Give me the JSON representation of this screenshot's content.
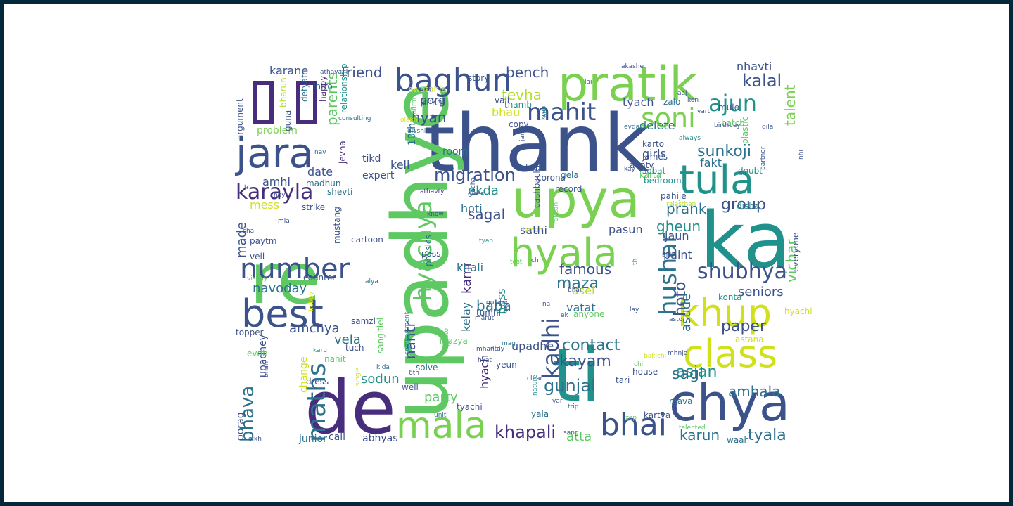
{
  "colors": {
    "frame": "#04273a",
    "background": "#ffffff"
  },
  "words": [
    {
      "t": "thank",
      "c": "#3b528b"
    },
    {
      "t": "upadhye",
      "c": "#5ec962"
    },
    {
      "t": "ka",
      "c": "#21918c"
    },
    {
      "t": "ti",
      "c": "#21918c"
    },
    {
      "t": "de",
      "c": "#472d7b"
    },
    {
      "t": "re",
      "c": "#5ec962"
    },
    {
      "t": "upya",
      "c": "#7ad151"
    },
    {
      "t": "pratik",
      "c": "#7ad151"
    },
    {
      "t": "chya",
      "c": "#3b528b"
    },
    {
      "t": "mala",
      "c": "#7ad151"
    },
    {
      "t": "class",
      "c": "#d0e11c"
    },
    {
      "t": "khup",
      "c": "#d0e11c"
    },
    {
      "t": "best",
      "c": "#3b528b"
    },
    {
      "t": "hyala",
      "c": "#7ad151"
    },
    {
      "t": "tula",
      "c": "#21918c"
    },
    {
      "t": "jara",
      "c": "#3b528b"
    },
    {
      "t": "baghun",
      "c": "#3b528b"
    },
    {
      "t": "number",
      "c": "#3b528b"
    },
    {
      "t": "bhai",
      "c": "#3b528b"
    },
    {
      "t": "soni",
      "c": "#7ad151"
    },
    {
      "t": "maths",
      "c": "#2c728e"
    },
    {
      "t": "hyachya",
      "c": "#5ec962"
    },
    {
      "t": "shubhya",
      "c": "#3b528b"
    },
    {
      "t": "karayla",
      "c": "#472d7b"
    },
    {
      "t": "mahit",
      "c": "#3b528b"
    },
    {
      "t": "ajun",
      "c": "#21918c"
    },
    {
      "t": "kadhi",
      "c": "#3b528b"
    },
    {
      "t": "hushar",
      "c": "#2c728e"
    },
    {
      "t": "bhava",
      "c": "#2c728e"
    },
    {
      "t": "migration",
      "c": "#3b528b"
    },
    {
      "t": "kalal",
      "c": "#3b528b"
    },
    {
      "t": "gunjal",
      "c": "#2c728e"
    },
    {
      "t": "khapali",
      "c": "#472d7b"
    },
    {
      "t": "contact",
      "c": "#2c728e"
    },
    {
      "t": "sunkoji",
      "c": "#2c728e"
    },
    {
      "t": "group",
      "c": "#3b528b"
    },
    {
      "t": "famous",
      "c": "#3b528b"
    },
    {
      "t": "kayam",
      "c": "#3b528b"
    },
    {
      "t": "tyala",
      "c": "#2c728e"
    },
    {
      "t": "amhala",
      "c": "#2c728e"
    },
    {
      "t": "asian",
      "c": "#21918c"
    },
    {
      "t": "sagl",
      "c": "#2c728e"
    },
    {
      "t": "maza",
      "c": "#2c728e"
    },
    {
      "t": "paper",
      "c": "#3b528b"
    },
    {
      "t": "seniors",
      "c": "#3b528b"
    },
    {
      "t": "nantr",
      "c": "#3b528b"
    },
    {
      "t": "baba",
      "c": "#2c728e"
    },
    {
      "t": "hoto",
      "c": "#3b528b"
    },
    {
      "t": "karun",
      "c": "#2c728e"
    },
    {
      "t": "bench",
      "c": "#3b528b"
    },
    {
      "t": "parents",
      "c": "#5ec962"
    },
    {
      "t": "talent",
      "c": "#7ad151"
    },
    {
      "t": "tevha",
      "c": "#b5de2b"
    },
    {
      "t": "hyan",
      "c": "#3b528b"
    },
    {
      "t": "sagal",
      "c": "#3b528b"
    },
    {
      "t": "prank",
      "c": "#2c728e"
    },
    {
      "t": "gheun",
      "c": "#21918c"
    },
    {
      "t": "vichar",
      "c": "#5ec962"
    },
    {
      "t": "amchya",
      "c": "#3b528b"
    },
    {
      "t": "party",
      "c": "#5ec962"
    },
    {
      "t": "atta",
      "c": "#5ec962"
    },
    {
      "t": "sodun",
      "c": "#21918c"
    },
    {
      "t": "vela",
      "c": "#2c728e"
    },
    {
      "t": "navoday",
      "c": "#2c728e"
    },
    {
      "t": "friend",
      "c": "#3b528b"
    },
    {
      "t": "karane",
      "c": "#3b528b"
    },
    {
      "t": "nhavti",
      "c": "#3b528b"
    },
    {
      "t": "tyach",
      "c": "#3b528b"
    },
    {
      "t": "porg",
      "c": "#3b528b"
    },
    {
      "t": "bhau",
      "c": "#d0e11c"
    },
    {
      "t": "keli",
      "c": "#3b528b"
    },
    {
      "t": "date",
      "c": "#3b528b"
    },
    {
      "t": "amhi",
      "c": "#3b528b"
    },
    {
      "t": "made",
      "c": "#3b528b"
    },
    {
      "t": "ekda",
      "c": "#21918c"
    },
    {
      "t": "hoti",
      "c": "#2c728e"
    },
    {
      "t": "sathi",
      "c": "#3b528b"
    },
    {
      "t": "kami",
      "c": "#472d7b"
    },
    {
      "t": "khali",
      "c": "#2c728e"
    },
    {
      "t": "pasun",
      "c": "#3b528b"
    },
    {
      "t": "jaun",
      "c": "#3b528b"
    },
    {
      "t": "paint",
      "c": "#3b528b"
    },
    {
      "t": "girls",
      "c": "#3b528b"
    },
    {
      "t": "fakt",
      "c": "#2c728e"
    },
    {
      "t": "delete",
      "c": "#2c728e"
    },
    {
      "t": "asel",
      "c": "#b5de2b"
    },
    {
      "t": "vatat",
      "c": "#2c728e"
    },
    {
      "t": "boss",
      "c": "#21918c"
    },
    {
      "t": "kelay",
      "c": "#2c728e"
    },
    {
      "t": "upadhe",
      "c": "#3b528b"
    },
    {
      "t": "asude",
      "c": "#2c728e"
    },
    {
      "t": "hyach",
      "c": "#472d7b"
    },
    {
      "t": "mess",
      "c": "#d0e11c"
    },
    {
      "t": "problem",
      "c": "#7ad151"
    },
    {
      "t": "upadhey",
      "c": "#3b528b"
    },
    {
      "t": "change",
      "c": "#d0e11c"
    },
    {
      "t": "porag",
      "c": "#3b528b"
    },
    {
      "t": "call",
      "c": "#3b528b"
    },
    {
      "t": "abhyas",
      "c": "#3b528b"
    },
    {
      "t": "junior",
      "c": "#2c728e"
    },
    {
      "t": "tikd",
      "c": "#3b528b"
    },
    {
      "t": "expert",
      "c": "#3b528b"
    },
    {
      "t": "room",
      "c": "#2c728e"
    },
    {
      "t": "10th",
      "c": "#2c728e"
    },
    {
      "t": "madhun",
      "c": "#2c728e"
    },
    {
      "t": "jevha",
      "c": "#472d7b"
    },
    {
      "t": "shevti",
      "c": "#2c728e"
    },
    {
      "t": "strike",
      "c": "#3b528b"
    },
    {
      "t": "paytm",
      "c": "#3b528b"
    },
    {
      "t": "veli",
      "c": "#3b528b"
    },
    {
      "t": "cartoon",
      "c": "#3b528b"
    },
    {
      "t": "pass",
      "c": "#3b528b"
    },
    {
      "t": "mustang",
      "c": "#3b528b"
    },
    {
      "t": "physics",
      "c": "#2c728e"
    },
    {
      "t": "counter",
      "c": "#3b528b"
    },
    {
      "t": "topper",
      "c": "#3b528b"
    },
    {
      "t": "evdh",
      "c": "#5ec962"
    },
    {
      "t": "nahit",
      "c": "#5ec962"
    },
    {
      "t": "dress",
      "c": "#3b528b"
    },
    {
      "t": "well",
      "c": "#3b528b"
    },
    {
      "t": "solve",
      "c": "#2c728e"
    },
    {
      "t": "tuch",
      "c": "#3b528b"
    },
    {
      "t": "samzl",
      "c": "#3b528b"
    },
    {
      "t": "sangitlel",
      "c": "#5ec962"
    },
    {
      "t": "yeun",
      "c": "#3b528b"
    },
    {
      "t": "tyachi",
      "c": "#3b528b"
    },
    {
      "t": "mazya",
      "c": "#5ec962"
    },
    {
      "t": "tumhi",
      "c": "#3b528b"
    },
    {
      "t": "anyone",
      "c": "#5ec962"
    },
    {
      "t": "house",
      "c": "#3b528b"
    },
    {
      "t": "tari",
      "c": "#3b528b"
    },
    {
      "t": "kartya",
      "c": "#3b528b"
    },
    {
      "t": "mava",
      "c": "#2c728e"
    },
    {
      "t": "yala",
      "c": "#2c728e"
    },
    {
      "t": "waah",
      "c": "#2c728e"
    },
    {
      "t": "astana",
      "c": "#d0e11c"
    },
    {
      "t": "hyachi",
      "c": "#d0e11c"
    },
    {
      "t": "everyone",
      "c": "#3b528b"
    },
    {
      "t": "konta",
      "c": "#21918c"
    },
    {
      "t": "disha",
      "c": "#21918c"
    },
    {
      "t": "plastic",
      "c": "#5ec962"
    },
    {
      "t": "batch",
      "c": "#5ec962"
    },
    {
      "t": "doubt",
      "c": "#21918c"
    },
    {
      "t": "mule",
      "c": "#3b528b"
    },
    {
      "t": "zalo",
      "c": "#2c728e"
    },
    {
      "t": "pahije",
      "c": "#3b528b"
    },
    {
      "t": "bedroom",
      "c": "#21918c"
    },
    {
      "t": "karta",
      "c": "#5ec962"
    },
    {
      "t": "james",
      "c": "#3b528b"
    },
    {
      "t": "aunty",
      "c": "#3b528b"
    },
    {
      "t": "sobat",
      "c": "#21918c"
    },
    {
      "t": "karto",
      "c": "#3b528b"
    },
    {
      "t": "gela",
      "c": "#2c728e"
    },
    {
      "t": "record",
      "c": "#3b528b"
    },
    {
      "t": "corona",
      "c": "#3b528b"
    },
    {
      "t": "cashback",
      "c": "#3b528b"
    },
    {
      "t": "kont",
      "c": "#3b528b"
    },
    {
      "t": "copy",
      "c": "#3b528b"
    },
    {
      "t": "thamb",
      "c": "#21918c"
    },
    {
      "t": "story",
      "c": "#3b528b"
    },
    {
      "t": "vali",
      "c": "#3b528b"
    },
    {
      "t": "ankhi",
      "c": "#3b528b"
    },
    {
      "t": "swatahla",
      "c": "#d0e11c"
    },
    {
      "t": "intro",
      "c": "#2c728e"
    },
    {
      "t": "guna",
      "c": "#3b528b"
    },
    {
      "t": "detyat",
      "c": "#2c728e"
    },
    {
      "t": "happy",
      "c": "#472d7b"
    },
    {
      "t": "bharun",
      "c": "#b5de2b"
    },
    {
      "t": "argument",
      "c": "#3b528b"
    },
    {
      "t": "relationship",
      "c": "#21918c"
    },
    {
      "t": "consulting",
      "c": "#2c728e"
    },
    {
      "t": "confirm",
      "c": "#5ec962"
    },
    {
      "t": "olakh",
      "c": "#d0e11c"
    },
    {
      "t": "ani",
      "c": "#2c728e"
    },
    {
      "t": "krun",
      "c": "#2c728e"
    },
    {
      "t": "divshi",
      "c": "#2c728e"
    },
    {
      "t": "jane",
      "c": "#3b528b"
    },
    {
      "t": "evda",
      "c": "#2c728e"
    },
    {
      "t": "kay",
      "c": "#3b528b"
    },
    {
      "t": "rajasthan",
      "c": "#b5de2b"
    },
    {
      "t": "always",
      "c": "#21918c"
    },
    {
      "t": "sir",
      "c": "#2c728e"
    },
    {
      "t": "nhi",
      "c": "#3b528b"
    },
    {
      "t": "dila",
      "c": "#3b528b"
    },
    {
      "t": "birthday",
      "c": "#3b528b"
    },
    {
      "t": "varti",
      "c": "#3b528b"
    },
    {
      "t": "kon",
      "c": "#3b528b"
    },
    {
      "t": "aaj",
      "c": "#3b528b"
    },
    {
      "t": "lai",
      "c": "#3b528b"
    },
    {
      "t": "akashe",
      "c": "#3b528b"
    },
    {
      "t": "athavani",
      "c": "#3b528b"
    },
    {
      "t": "nav",
      "c": "#2c728e"
    },
    {
      "t": "tr",
      "c": "#3b528b"
    },
    {
      "t": "cha",
      "c": "#3b528b"
    },
    {
      "t": "mla",
      "c": "#3b528b"
    },
    {
      "t": "hoy",
      "c": "#3b528b"
    },
    {
      "t": "athavty",
      "c": "#472d7b"
    },
    {
      "t": "know",
      "c": "#3b528b"
    },
    {
      "t": "yacha",
      "c": "#3b528b"
    },
    {
      "t": "glass",
      "c": "#3b528b"
    },
    {
      "t": "tyan",
      "c": "#21918c"
    },
    {
      "t": "la",
      "c": "#5ec962"
    },
    {
      "t": "rajstan",
      "c": "#5ec962"
    },
    {
      "t": "jamun",
      "c": "#d0e11c"
    },
    {
      "t": "bill",
      "c": "#3b528b"
    },
    {
      "t": "partner",
      "c": "#3b528b"
    },
    {
      "t": "lay",
      "c": "#3b528b"
    },
    {
      "t": "th",
      "c": "#21918c"
    },
    {
      "t": "vishay",
      "c": "#5ec962"
    },
    {
      "t": "alya",
      "c": "#2c728e"
    },
    {
      "t": "hobby",
      "c": "#d0e11c"
    },
    {
      "t": "karu",
      "c": "#21918c"
    },
    {
      "t": "hyat",
      "c": "#3b528b"
    },
    {
      "t": "test",
      "c": "#5ec962"
    },
    {
      "t": "mhantay",
      "c": "#3b528b"
    },
    {
      "t": "maruti",
      "c": "#3b528b"
    },
    {
      "t": "bhai",
      "c": "#3b528b"
    },
    {
      "t": "kaytr",
      "c": "#3b528b"
    },
    {
      "t": "gulab",
      "c": "#3b528b"
    },
    {
      "t": "ch",
      "c": "#3b528b"
    },
    {
      "t": "mag",
      "c": "#2c728e"
    },
    {
      "t": "bakichi",
      "c": "#d0e11c"
    },
    {
      "t": "chi",
      "c": "#5ec962"
    },
    {
      "t": "mhnje",
      "c": "#3b528b"
    },
    {
      "t": "6th",
      "c": "#3b528b"
    },
    {
      "t": "na",
      "c": "#3b528b"
    },
    {
      "t": "clear",
      "c": "#3b528b"
    },
    {
      "t": "ata",
      "c": "#3b528b"
    },
    {
      "t": "ek",
      "c": "#3b528b"
    },
    {
      "t": "compartment",
      "c": "#21918c"
    },
    {
      "t": "photo",
      "c": "#5ec962"
    },
    {
      "t": "kida",
      "c": "#2c728e"
    },
    {
      "t": "single",
      "c": "#d0e11c"
    },
    {
      "t": "unit",
      "c": "#2c728e"
    },
    {
      "t": "nature",
      "c": "#21918c"
    },
    {
      "t": "trip",
      "c": "#2c728e"
    },
    {
      "t": "sang",
      "c": "#3b528b"
    },
    {
      "t": "var",
      "c": "#3b528b"
    },
    {
      "t": "talented",
      "c": "#5ec962"
    },
    {
      "t": "zop",
      "c": "#5ec962"
    },
    {
      "t": "bhari",
      "c": "#3b528b"
    },
    {
      "t": "olkh",
      "c": "#3b528b"
    },
    {
      "t": "asto",
      "c": "#3b528b"
    }
  ]
}
